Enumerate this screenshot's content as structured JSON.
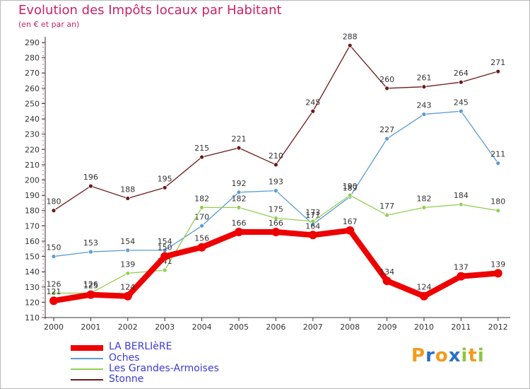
{
  "header": {
    "title": "Evolution des Impôts locaux par Habitant",
    "subtitle": "(en € et par an)"
  },
  "logo": {
    "letters": [
      "P",
      "r",
      "o",
      "x",
      "i",
      "t",
      "i"
    ],
    "colors": [
      "#f29b1d",
      "#2a6fc9",
      "#f29b1d",
      "#2a6fc9",
      "#8dc63f",
      "#f29b1d",
      "#8dc63f"
    ]
  },
  "chart_data": {
    "type": "line",
    "x": [
      "2000",
      "2001",
      "2002",
      "2003",
      "2004",
      "2005",
      "2006",
      "2007",
      "2008",
      "2009",
      "2010",
      "2011",
      "2012"
    ],
    "ylim": [
      110,
      290
    ],
    "yticks": [
      110,
      120,
      130,
      140,
      150,
      160,
      170,
      180,
      190,
      200,
      210,
      220,
      230,
      240,
      250,
      260,
      270,
      280,
      290
    ],
    "grid": false,
    "legend_position": "bottom-left",
    "series": [
      {
        "name": "Stonne",
        "color": "#6b1a1a",
        "values": [
          180,
          196,
          188,
          195,
          215,
          221,
          210,
          245,
          288,
          260,
          261,
          264,
          271
        ]
      },
      {
        "name": "Oches",
        "color": "#5b9bd5",
        "values": [
          150,
          153,
          154,
          154,
          170,
          192,
          193,
          171,
          189,
          227,
          243,
          245,
          211
        ]
      },
      {
        "name": "Les Grandes-Armoises",
        "color": "#92d050",
        "values": [
          126,
          126,
          139,
          141,
          182,
          182,
          175,
          173,
          190,
          177,
          182,
          184,
          180
        ]
      },
      {
        "name": "LA BERLIèRE",
        "color": "#ee0000",
        "values": [
          121,
          125,
          124,
          150,
          156,
          166,
          166,
          164,
          167,
          134,
          124,
          137,
          139
        ]
      }
    ],
    "data_labels": [
      [
        "180",
        "196",
        "188",
        "195",
        "215",
        "221",
        "210",
        "245",
        "288",
        "260",
        "261",
        "264",
        "271"
      ],
      [
        "150",
        "153",
        "154",
        "154",
        "170",
        "192",
        "193",
        "171",
        "189",
        "227",
        "243",
        "245",
        "211"
      ],
      [
        "126",
        "126",
        "139",
        "141",
        "182",
        "182",
        "175",
        "173",
        "190",
        "177",
        "182",
        "184",
        "180"
      ],
      [
        "121",
        "125",
        "124",
        "150",
        "156",
        "166",
        "166",
        "164",
        "167",
        "134",
        "124",
        "137",
        "139"
      ]
    ],
    "legend_order": [
      "LA BERLIèRE",
      "Oches",
      "Les Grandes-Armoises",
      "Stonne"
    ]
  }
}
